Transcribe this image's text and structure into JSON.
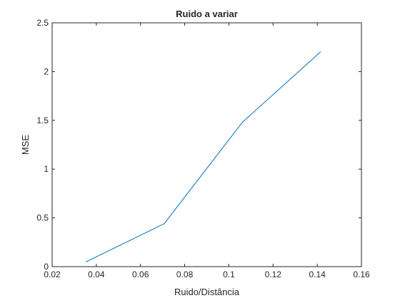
{
  "chart_data": {
    "type": "line",
    "title": "Ruido a variar",
    "xlabel": "Ruido/Distância",
    "ylabel": "MSE",
    "xlim": [
      0.02,
      0.16
    ],
    "ylim": [
      0,
      2.5
    ],
    "xticks": [
      0.02,
      0.04,
      0.06,
      0.08,
      0.1,
      0.12,
      0.14,
      0.16
    ],
    "xtick_labels": [
      "0.02",
      "0.04",
      "0.06",
      "0.08",
      "0.1",
      "0.12",
      "0.14",
      "0.16"
    ],
    "yticks": [
      0,
      0.5,
      1,
      1.5,
      2,
      2.5
    ],
    "ytick_labels": [
      "0",
      "0.5",
      "1",
      "1.5",
      "2",
      "2.5"
    ],
    "grid": false,
    "series": [
      {
        "color": "#0072BD",
        "x": [
          0.0354,
          0.0707,
          0.1061,
          0.1414
        ],
        "y": [
          0.05,
          0.44,
          1.48,
          2.2
        ]
      }
    ]
  }
}
